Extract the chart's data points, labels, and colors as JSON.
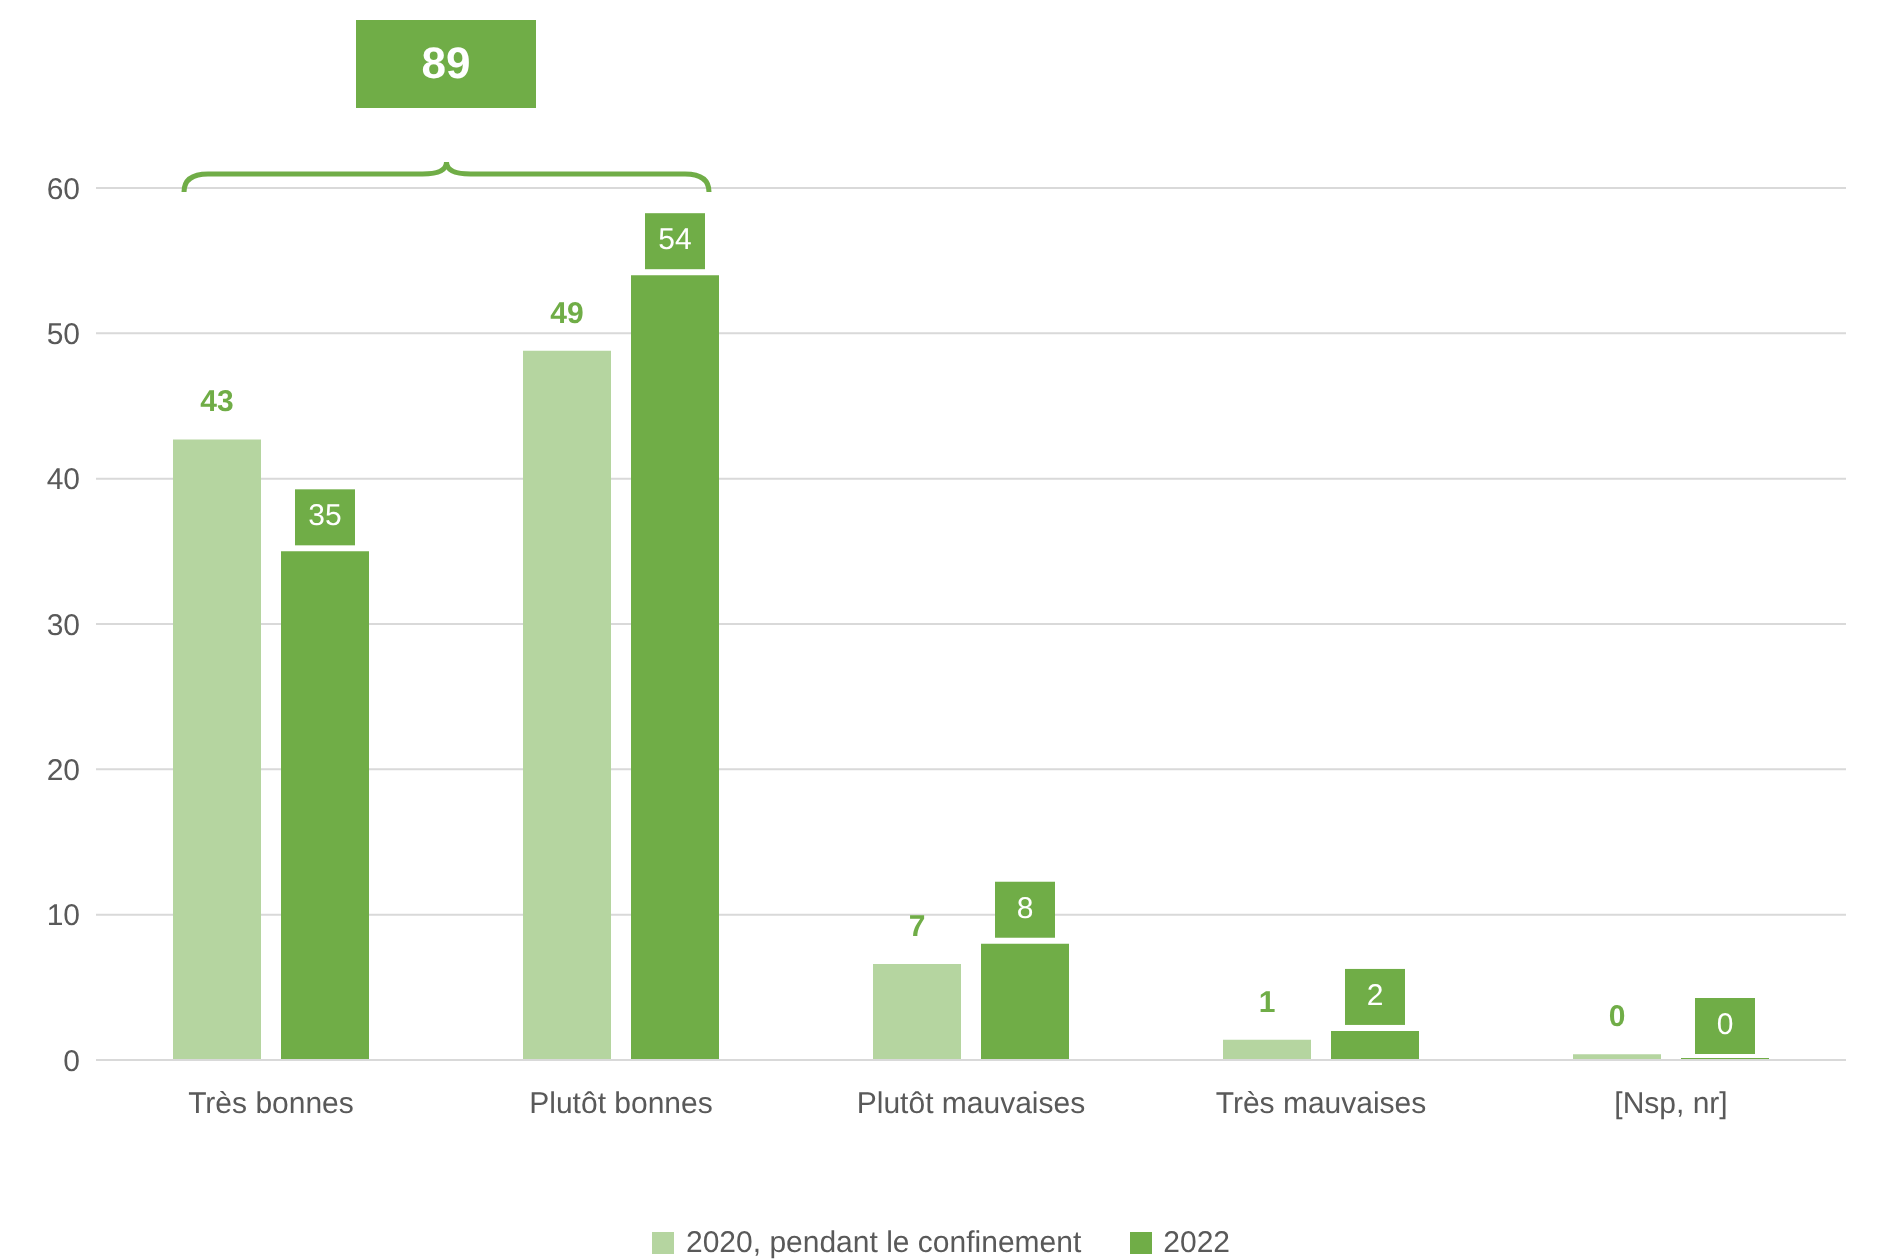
{
  "chart_data": {
    "type": "bar",
    "categories": [
      "Très bonnes",
      "Plutôt bonnes",
      "Plutôt mauvaises",
      "Très mauvaises",
      "[Nsp, nr]"
    ],
    "series": [
      {
        "name": "2020, pendant le confinement",
        "color": "#b5d5a0",
        "values": [
          42.7,
          48.8,
          6.6,
          1.4,
          0.4
        ],
        "value_labels": [
          "43",
          "49",
          "7",
          "1",
          "0"
        ]
      },
      {
        "name": "2022",
        "color": "#70ad47",
        "values": [
          35,
          54,
          8,
          2,
          0
        ],
        "value_labels": [
          "35",
          "54",
          "8",
          "2",
          "0"
        ]
      }
    ],
    "ylim": [
      0,
      60
    ],
    "yticks": [
      0,
      10,
      20,
      30,
      40,
      50,
      60
    ],
    "grid": "y",
    "legend": "bottom",
    "annotations": [
      "89"
    ]
  }
}
